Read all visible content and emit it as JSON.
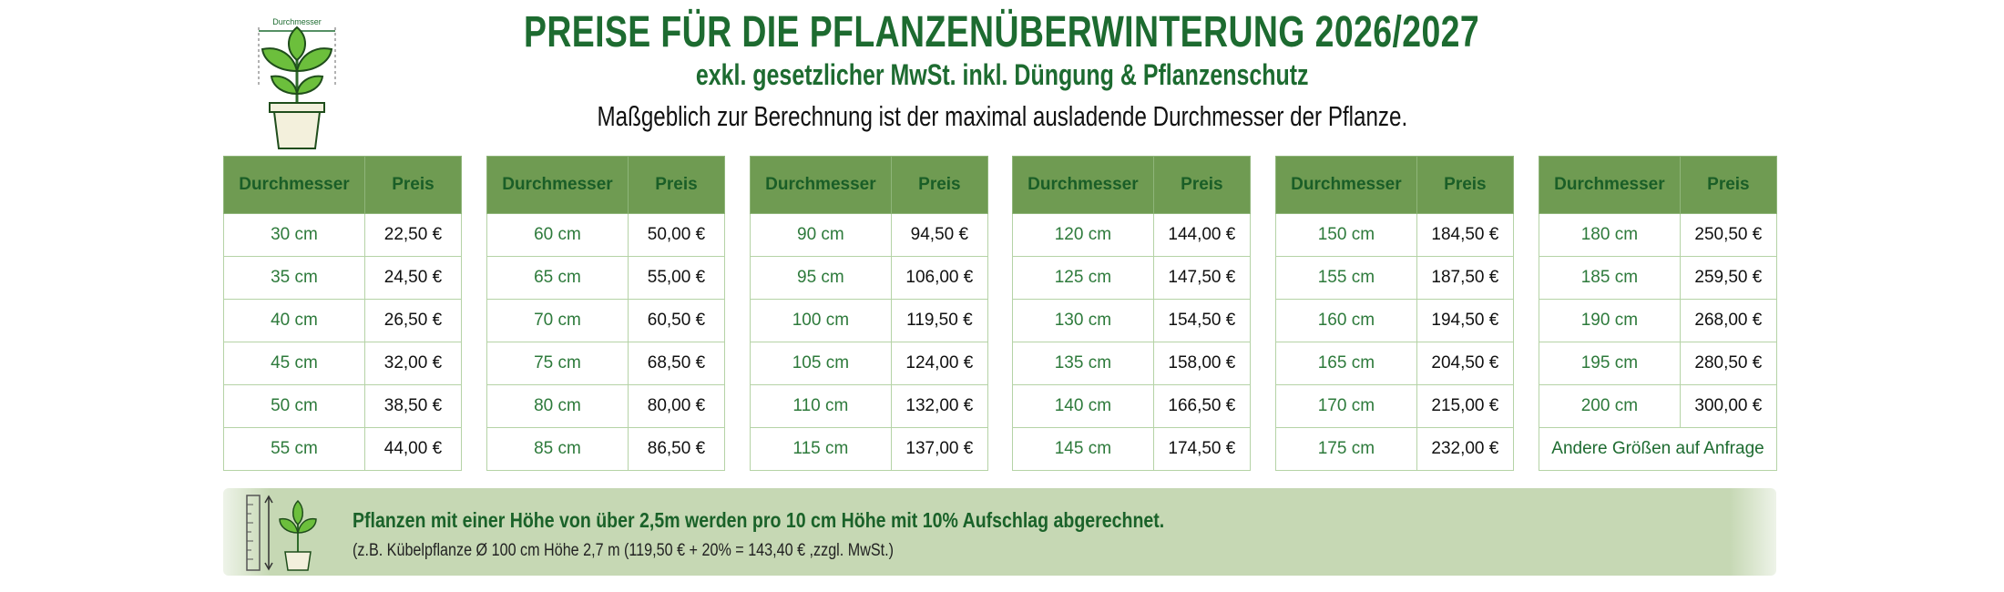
{
  "header": {
    "icon_label": "Durchmesser",
    "title": "PREISE FÜR DIE PFLANZENÜBERWINTERUNG 2026/2027",
    "subtitle": "exkl. gesetzlicher MwSt. inkl. Düngung & Pflanzenschutz",
    "note": "Maßgeblich zur Berechnung ist der maximal ausladende Durchmesser der Pflanze."
  },
  "tables": [
    {
      "headers": [
        "Durchmesser",
        "Preis"
      ],
      "rows": [
        [
          "30 cm",
          "22,50 €"
        ],
        [
          "35 cm",
          "24,50 €"
        ],
        [
          "40 cm",
          "26,50 €"
        ],
        [
          "45 cm",
          "32,00 €"
        ],
        [
          "50 cm",
          "38,50 €"
        ],
        [
          "55 cm",
          "44,00 €"
        ]
      ]
    },
    {
      "headers": [
        "Durchmesser",
        "Preis"
      ],
      "rows": [
        [
          "60 cm",
          "50,00 €"
        ],
        [
          "65 cm",
          "55,00 €"
        ],
        [
          "70 cm",
          "60,50 €"
        ],
        [
          "75 cm",
          "68,50 €"
        ],
        [
          "80 cm",
          "80,00 €"
        ],
        [
          "85 cm",
          "86,50 €"
        ]
      ]
    },
    {
      "headers": [
        "Durchmesser",
        "Preis"
      ],
      "rows": [
        [
          "90 cm",
          "94,50 €"
        ],
        [
          "95 cm",
          "106,00 €"
        ],
        [
          "100 cm",
          "119,50 €"
        ],
        [
          "105 cm",
          "124,00 €"
        ],
        [
          "110 cm",
          "132,00 €"
        ],
        [
          "115 cm",
          "137,00 €"
        ]
      ]
    },
    {
      "headers": [
        "Durchmesser",
        "Preis"
      ],
      "rows": [
        [
          "120 cm",
          "144,00 €"
        ],
        [
          "125 cm",
          "147,50 €"
        ],
        [
          "130 cm",
          "154,50 €"
        ],
        [
          "135 cm",
          "158,00 €"
        ],
        [
          "140 cm",
          "166,50 €"
        ],
        [
          "145 cm",
          "174,50 €"
        ]
      ]
    },
    {
      "headers": [
        "Durchmesser",
        "Preis"
      ],
      "rows": [
        [
          "150 cm",
          "184,50 €"
        ],
        [
          "155 cm",
          "187,50 €"
        ],
        [
          "160 cm",
          "194,50 €"
        ],
        [
          "165 cm",
          "204,50 €"
        ],
        [
          "170 cm",
          "215,00 €"
        ],
        [
          "175 cm",
          "232,00 €"
        ]
      ]
    },
    {
      "headers": [
        "Durchmesser",
        "Preis"
      ],
      "rows": [
        [
          "180 cm",
          "250,50 €"
        ],
        [
          "185 cm",
          "259,50 €"
        ],
        [
          "190 cm",
          "268,00 €"
        ],
        [
          "195 cm",
          "280,50 €"
        ],
        [
          "200 cm",
          "300,00 €"
        ]
      ],
      "note": "Andere Größen auf Anfrage"
    }
  ],
  "footer": {
    "main": "Pflanzen mit einer Höhe von über 2,5m werden pro 10 cm Höhe mit 10% Aufschlag abgerechnet.",
    "example": "(z.B. Kübelpflanze Ø 100 cm Höhe 2,7 m (119,50 € + 20% = 143,40 € ,zzgl. MwSt.)"
  }
}
